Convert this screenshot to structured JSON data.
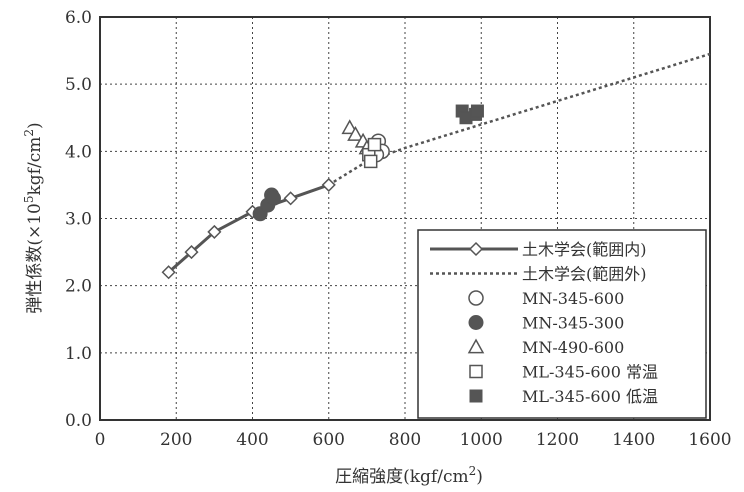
{
  "chart_data": {
    "type": "scatter",
    "xlabel": "圧縮強度(kgf/cm2)",
    "ylabel": "弾性係数(×105kgf/cm2)",
    "xlim": [
      0,
      1600
    ],
    "ylim": [
      0,
      6
    ],
    "x_ticks": [
      "0",
      "200",
      "400",
      "600",
      "800",
      "1000",
      "1200",
      "1400",
      "1600"
    ],
    "y_ticks": [
      "0.0",
      "1.0",
      "2.0",
      "3.0",
      "4.0",
      "5.0",
      "6.0"
    ],
    "grid": "dotted",
    "legend_position": "bottom-right",
    "series": [
      {
        "name": "土木学会(範囲内)",
        "style": "solid-line-diamond",
        "points": [
          [
            180,
            2.2
          ],
          [
            240,
            2.5
          ],
          [
            300,
            2.8
          ],
          [
            400,
            3.1
          ],
          [
            500,
            3.3
          ],
          [
            600,
            3.5
          ]
        ]
      },
      {
        "name": "土木学会(範囲外)",
        "style": "dotted-line",
        "points": [
          [
            600,
            3.5
          ],
          [
            700,
            3.85
          ],
          [
            800,
            4.05
          ],
          [
            1000,
            4.4
          ],
          [
            1200,
            4.75
          ],
          [
            1400,
            5.1
          ],
          [
            1600,
            5.45
          ]
        ]
      },
      {
        "name": "MN-345-600",
        "style": "open-circle",
        "points": [
          [
            720,
            4.05
          ],
          [
            730,
            4.15
          ],
          [
            740,
            4.0
          ],
          [
            725,
            3.95
          ]
        ]
      },
      {
        "name": "MN-345-300",
        "style": "filled-circle",
        "points": [
          [
            420,
            3.07
          ],
          [
            440,
            3.2
          ],
          [
            450,
            3.35
          ],
          [
            455,
            3.3
          ]
        ]
      },
      {
        "name": "MN-490-600",
        "style": "open-triangle",
        "points": [
          [
            655,
            4.35
          ],
          [
            670,
            4.25
          ],
          [
            690,
            4.15
          ],
          [
            700,
            4.05
          ]
        ]
      },
      {
        "name": "ML-345-600 常温",
        "style": "open-square",
        "points": [
          [
            705,
            3.95
          ],
          [
            710,
            3.85
          ],
          [
            720,
            4.1
          ]
        ]
      },
      {
        "name": "ML-345-600 低温",
        "style": "filled-square",
        "points": [
          [
            950,
            4.6
          ],
          [
            960,
            4.5
          ],
          [
            985,
            4.55
          ],
          [
            990,
            4.6
          ]
        ]
      }
    ],
    "colors": {
      "line": "#555555",
      "marker": "#555555",
      "grid": "#444444",
      "axis": "#333333"
    }
  }
}
